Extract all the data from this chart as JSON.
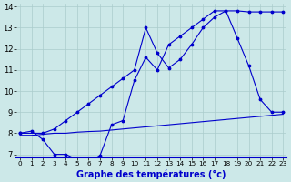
{
  "xlabel": "Graphe des températures (°c)",
  "background_color": "#cce8e8",
  "grid_color": "#aacccc",
  "line_color": "#0000cc",
  "xlim_min": 0,
  "xlim_max": 23,
  "ylim_min": 7,
  "ylim_max": 14,
  "xticks": [
    0,
    1,
    2,
    3,
    4,
    5,
    6,
    7,
    8,
    9,
    10,
    11,
    12,
    13,
    14,
    15,
    16,
    17,
    18,
    19,
    20,
    21,
    22,
    23
  ],
  "yticks": [
    7,
    8,
    9,
    10,
    11,
    12,
    13,
    14
  ],
  "curve1_x": [
    0,
    1,
    2,
    3,
    4,
    5,
    6,
    7,
    8,
    9,
    10,
    11,
    12,
    13,
    14,
    15,
    16,
    17,
    18,
    19,
    20,
    21,
    22,
    23
  ],
  "curve1_y": [
    8.0,
    8.1,
    7.7,
    7.0,
    7.0,
    6.75,
    6.65,
    6.95,
    8.4,
    8.6,
    10.5,
    11.6,
    11.0,
    12.2,
    12.6,
    13.0,
    13.4,
    13.8,
    13.8,
    12.5,
    11.2,
    9.6,
    9.0,
    9.0
  ],
  "curve2_x": [
    0,
    2,
    3,
    4,
    5,
    6,
    7,
    8,
    9,
    10,
    11,
    12,
    13,
    14,
    15,
    16,
    17,
    18,
    19,
    20,
    21,
    22,
    23
  ],
  "curve2_y": [
    8.0,
    8.0,
    8.2,
    8.6,
    9.0,
    9.4,
    9.8,
    10.2,
    10.6,
    11.0,
    13.0,
    11.8,
    11.1,
    11.5,
    12.2,
    13.0,
    13.5,
    13.8,
    13.8,
    13.75,
    13.75,
    13.75,
    13.75
  ],
  "curve3_x": [
    0,
    1,
    2,
    3,
    4,
    5,
    6,
    7,
    8,
    9,
    10,
    11,
    12,
    13,
    14,
    15,
    16,
    17,
    18,
    19,
    20,
    21,
    22,
    23
  ],
  "curve3_y": [
    7.9,
    7.9,
    7.95,
    8.0,
    8.0,
    8.05,
    8.08,
    8.1,
    8.15,
    8.2,
    8.25,
    8.3,
    8.35,
    8.4,
    8.45,
    8.5,
    8.55,
    8.6,
    8.65,
    8.7,
    8.75,
    8.8,
    8.85,
    8.9
  ]
}
